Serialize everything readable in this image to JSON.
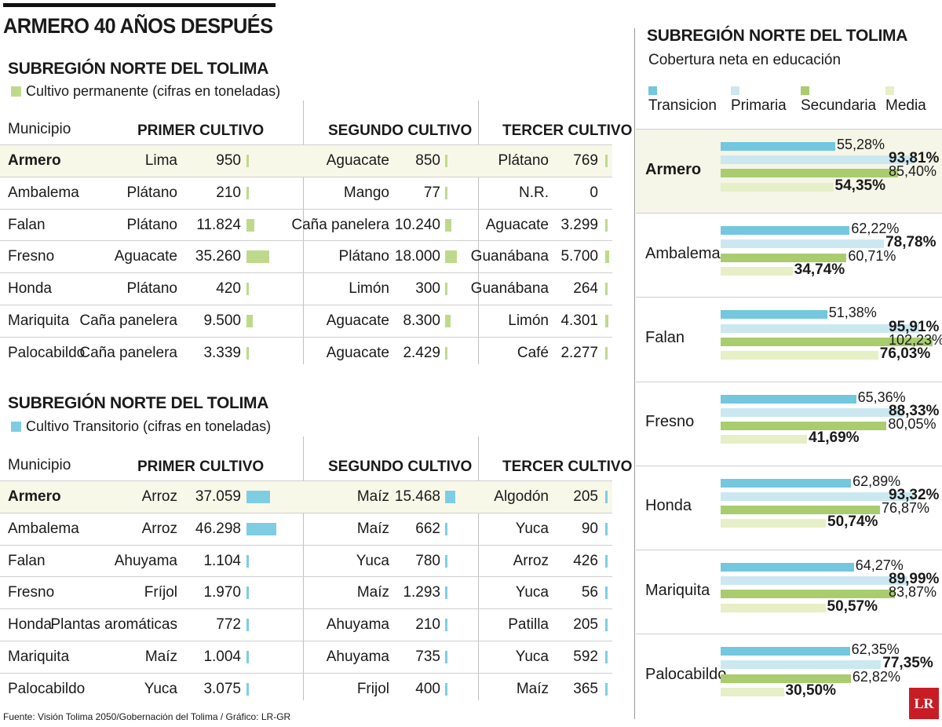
{
  "title": "ARMERO 40 AÑOS DESPUÉS",
  "colors": {
    "permanente": "#bfd98b",
    "transitorio": "#7fcde3",
    "transicion": "#73c7de",
    "primaria": "#cbe8f1",
    "secundaria": "#a9cc6e",
    "media": "#e6efc6",
    "highlight": "#f8f8e9"
  },
  "headers": {
    "municipio": "Municipio",
    "primer": "PRIMER CULTIVO",
    "segundo": "SEGUNDO CULTIVO",
    "tercer": "TERCER CULTIVO"
  },
  "permanente": {
    "title": "SUBREGIÓN NORTE DEL TOLIMA",
    "legend": "Cultivo permanente (cifras en toneladas)",
    "rows": [
      {
        "municipio": "Armero",
        "c1": "Lima",
        "v1": "950",
        "c2": "Aguacate",
        "v2": "850",
        "c3": "Plátano",
        "v3": "769"
      },
      {
        "municipio": "Ambalema",
        "c1": "Plátano",
        "v1": "210",
        "c2": "Mango",
        "v2": "77",
        "c3": "N.R.",
        "v3": "0"
      },
      {
        "municipio": "Falan",
        "c1": "Plátano",
        "v1": "11.824",
        "c2": "Caña panelera",
        "v2": "10.240",
        "c3": "Aguacate",
        "v3": "3.299"
      },
      {
        "municipio": "Fresno",
        "c1": "Aguacate",
        "v1": "35.260",
        "c2": "Plátano",
        "v2": "18.000",
        "c3": "Guanábana",
        "v3": "5.700"
      },
      {
        "municipio": "Honda",
        "c1": "Plátano",
        "v1": "420",
        "c2": "Limón",
        "v2": "300",
        "c3": "Guanábana",
        "v3": "264"
      },
      {
        "municipio": "Mariquita",
        "c1": "Caña panelera",
        "v1": "9.500",
        "c2": "Aguacate",
        "v2": "8.300",
        "c3": "Limón",
        "v3": "4.301"
      },
      {
        "municipio": "Palocabildo",
        "c1": "Caña panelera",
        "v1": "3.339",
        "c2": "Aguacate",
        "v2": "2.429",
        "c3": "Café",
        "v3": "2.277"
      }
    ]
  },
  "transitorio": {
    "title": "SUBREGIÓN NORTE DEL TOLIMA",
    "legend": "Cultivo Transitorio (cifras en toneladas)",
    "rows": [
      {
        "municipio": "Armero",
        "c1": "Arroz",
        "v1": "37.059",
        "c2": "Maíz",
        "v2": "15.468",
        "c3": "Algodón",
        "v3": "205"
      },
      {
        "municipio": "Ambalema",
        "c1": "Arroz",
        "v1": "46.298",
        "c2": "Maíz",
        "v2": "662",
        "c3": "Yuca",
        "v3": "90"
      },
      {
        "municipio": "Falan",
        "c1": "Ahuyama",
        "v1": "1.104",
        "c2": "Yuca",
        "v2": "780",
        "c3": "Arroz",
        "v3": "426"
      },
      {
        "municipio": "Fresno",
        "c1": "Fríjol",
        "v1": "1.970",
        "c2": "Maíz",
        "v2": "1.293",
        "c3": "Yuca",
        "v3": "56"
      },
      {
        "municipio": "Honda",
        "c1": "Plantas aromáticas",
        "v1": "772",
        "c2": "Ahuyama",
        "v2": "210",
        "c3": "Patilla",
        "v3": "205"
      },
      {
        "municipio": "Mariquita",
        "c1": "Maíz",
        "v1": "1.004",
        "c2": "Ahuyama",
        "v2": "735",
        "c3": "Yuca",
        "v3": "592"
      },
      {
        "municipio": "Palocabildo",
        "c1": "Yuca",
        "v1": "3.075",
        "c2": "Frijol",
        "v2": "400",
        "c3": "Maíz",
        "v3": "365"
      }
    ]
  },
  "chart_data": {
    "type": "bar",
    "title": "SUBREGIÓN NORTE DEL TOLIMA",
    "subtitle": "Cobertura neta en educación",
    "orientation": "horizontal",
    "categories": [
      "Armero",
      "Ambalema",
      "Falan",
      "Fresno",
      "Honda",
      "Mariquita",
      "Palocabildo"
    ],
    "highlight": "Armero",
    "legend": "top",
    "series": [
      {
        "name": "Transicion",
        "color": "#73c7de",
        "bold": false,
        "values": [
          55.28,
          62.22,
          51.38,
          65.36,
          62.89,
          64.27,
          62.35
        ],
        "labels": [
          "55,28%",
          "62,22%",
          "51,38%",
          "65,36%",
          "62,89%",
          "64,27%",
          "62,35%"
        ]
      },
      {
        "name": "Primaria",
        "color": "#cbe8f1",
        "bold": true,
        "values": [
          93.81,
          78.78,
          95.91,
          88.33,
          93.32,
          89.99,
          77.35
        ],
        "labels": [
          "93,81%",
          "78,78%",
          "95,91%",
          "88,33%",
          "93,32%",
          "89,99%",
          "77,35%"
        ]
      },
      {
        "name": "Secundaria",
        "color": "#a9cc6e",
        "bold": false,
        "values": [
          85.4,
          60.71,
          102.23,
          80.05,
          76.87,
          83.87,
          62.82
        ],
        "labels": [
          "85,40%",
          "60,71%",
          "102,23%",
          "80,05%",
          "76,87%",
          "83,87%",
          "62,82%"
        ]
      },
      {
        "name": "Media",
        "color": "#e6efc6",
        "bold": true,
        "values": [
          54.35,
          34.74,
          76.03,
          41.69,
          50.74,
          50.57,
          30.5
        ],
        "labels": [
          "54,35%",
          "34,74%",
          "76,03%",
          "41,69%",
          "50,74%",
          "50,57%",
          "30,50%"
        ]
      }
    ],
    "xlim": [
      0,
      102.23
    ]
  },
  "source": "Fuente: Visión Tolima 2050/Gobernación del Tolima / Gráfico: LR-GR",
  "logo": "LR"
}
